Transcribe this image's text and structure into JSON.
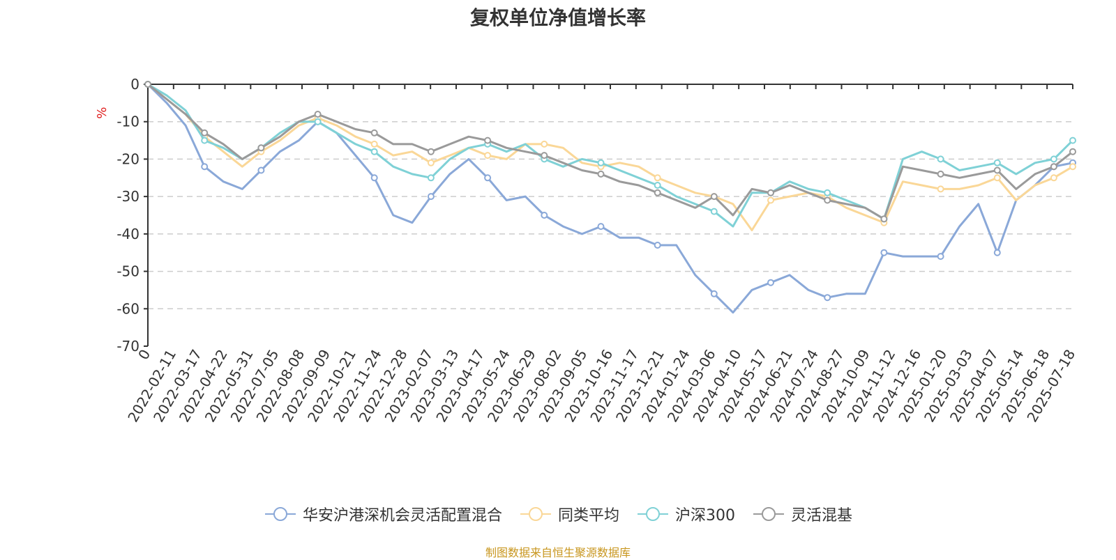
{
  "chart_data": {
    "type": "line",
    "title": "复权单位净值增长率",
    "ylabel": "%",
    "ylim": [
      -70,
      0
    ],
    "y_ticks": [
      0,
      -10,
      -20,
      -30,
      -40,
      -50,
      -60,
      -70
    ],
    "x_origin_label": "0",
    "x_ticks": [
      "2022-02-11",
      "2022-03-17",
      "2022-04-22",
      "2022-05-31",
      "2022-07-05",
      "2022-08-08",
      "2022-09-09",
      "2022-10-21",
      "2022-11-24",
      "2022-12-28",
      "2023-02-07",
      "2023-03-13",
      "2023-04-17",
      "2023-05-24",
      "2023-06-29",
      "2023-08-02",
      "2023-09-05",
      "2023-10-16",
      "2023-11-17",
      "2023-12-21",
      "2024-01-24",
      "2024-03-06",
      "2024-04-10",
      "2024-05-17",
      "2024-06-21",
      "2024-07-24",
      "2024-08-27",
      "2024-10-09",
      "2024-11-12",
      "2024-12-16",
      "2025-01-20",
      "2025-03-03",
      "2025-04-07",
      "2025-05-14",
      "2025-06-18",
      "2025-07-18"
    ],
    "grid": true,
    "legend_position": "bottom",
    "series": [
      {
        "name": "华安沪港深机会灵活配置混合",
        "color": "#8aa8d8",
        "values": [
          0,
          -5,
          -11,
          -22,
          -26,
          -28,
          -23,
          -18,
          -15,
          -10,
          -13,
          -19,
          -25,
          -35,
          -37,
          -30,
          -24,
          -20,
          -25,
          -31,
          -30,
          -35,
          -38,
          -40,
          -38,
          -41,
          -41,
          -43,
          -43,
          -51,
          -56,
          -61,
          -55,
          -53,
          -51,
          -55,
          -57,
          -56,
          -56,
          -45,
          -46,
          -46,
          -46,
          -38,
          -32,
          -45,
          -31,
          -27,
          -22,
          -21
        ]
      },
      {
        "name": "同类平均",
        "color": "#fad797",
        "values": [
          0,
          -4,
          -8,
          -14,
          -18,
          -22,
          -18,
          -15,
          -11,
          -9,
          -11,
          -14,
          -16,
          -19,
          -18,
          -21,
          -19,
          -17,
          -19,
          -20,
          -16,
          -16,
          -17,
          -21,
          -22,
          -21,
          -22,
          -25,
          -27,
          -29,
          -30,
          -32,
          -39,
          -31,
          -30,
          -29,
          -30,
          -33,
          -35,
          -37,
          -26,
          -27,
          -28,
          -28,
          -27,
          -25,
          -31,
          -27,
          -25,
          -22
        ]
      },
      {
        "name": "沪深300",
        "color": "#7fd1d6",
        "values": [
          0,
          -3,
          -7,
          -15,
          -17,
          -20,
          -17,
          -13,
          -10,
          -10,
          -13,
          -16,
          -18,
          -22,
          -24,
          -25,
          -20,
          -17,
          -16,
          -18,
          -16,
          -20,
          -22,
          -20,
          -21,
          -23,
          -25,
          -27,
          -30,
          -32,
          -34,
          -38,
          -29,
          -29,
          -26,
          -28,
          -29,
          -31,
          -33,
          -36,
          -20,
          -18,
          -20,
          -23,
          -22,
          -21,
          -24,
          -21,
          -20,
          -15
        ]
      },
      {
        "name": "灵活混基",
        "color": "#9a9a9a",
        "values": [
          0,
          -4,
          -8,
          -13,
          -16,
          -20,
          -17,
          -14,
          -10,
          -8,
          -10,
          -12,
          -13,
          -16,
          -16,
          -18,
          -16,
          -14,
          -15,
          -17,
          -18,
          -19,
          -21,
          -23,
          -24,
          -26,
          -27,
          -29,
          -31,
          -33,
          -30,
          -35,
          -28,
          -29,
          -27,
          -29,
          -31,
          -32,
          -33,
          -36,
          -22,
          -23,
          -24,
          -25,
          -24,
          -23,
          -28,
          -24,
          -22,
          -18
        ]
      }
    ]
  },
  "source_note": "制图数据来自恒生聚源数据库"
}
